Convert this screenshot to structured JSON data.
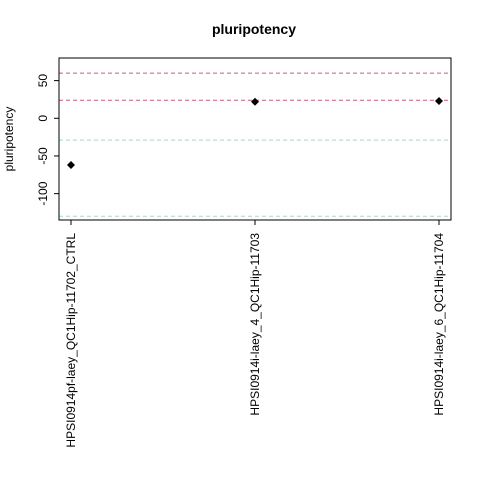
{
  "chart_data": {
    "type": "scatter",
    "title": "pluripotency",
    "ylabel": "pluripotency",
    "xlabel": "",
    "categories": [
      "HPSI0914pf-laey_QC1Hip-11702_CTRL",
      "HPSI0914i-laey_4_QC1Hip-11703",
      "HPSI0914i-laey_6_QC1Hip-11704"
    ],
    "values": [
      -62,
      22,
      23
    ],
    "ylim": [
      -135,
      80
    ],
    "yticks": [
      -100,
      -50,
      0,
      50
    ],
    "reference_lines": [
      {
        "y": 60,
        "color": "#cd5c7a",
        "style": "dashed"
      },
      {
        "y": 24,
        "color": "#cd5c7a",
        "style": "dashed"
      },
      {
        "y": -29,
        "color": "#a8d8c8",
        "style": "dashed"
      },
      {
        "y": -130,
        "color": "#a8d8c8",
        "style": "dashed"
      }
    ],
    "marker": "diamond",
    "marker_color": "#000000",
    "grid": false,
    "legend": "none"
  }
}
